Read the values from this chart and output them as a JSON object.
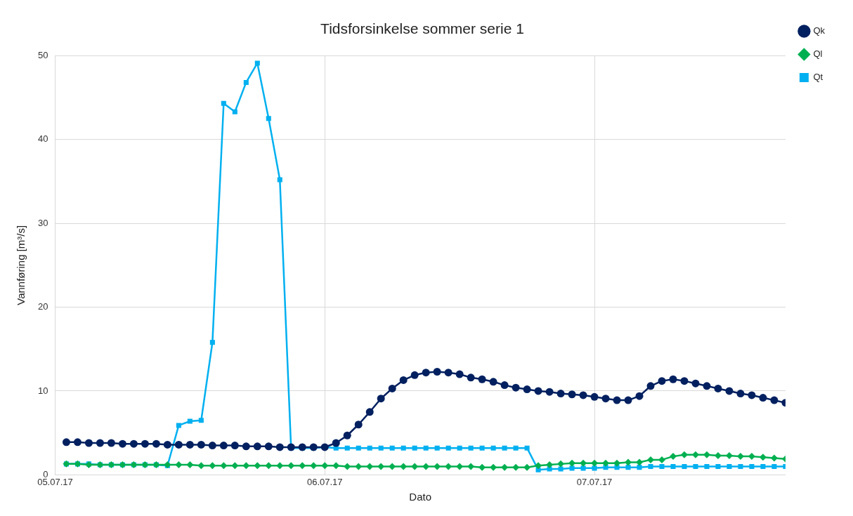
{
  "chart_data": {
    "type": "line",
    "title": "Tidsforsinkelse sommer serie 1",
    "xlabel": "Dato",
    "ylabel": "Vannføring [m³/s]",
    "x": [
      "--07-05T01:00",
      "--07-05T02:00",
      "--07-05T03:00",
      "--07-05T04:00",
      "--07-05T05:00",
      "--07-05T06:00",
      "--07-05T07:00",
      "--07-05T08:00",
      "--07-05T09:00",
      "--07-05T10:00",
      "--07-05T11:00",
      "--07-05T12:00",
      "--07-05T13:00",
      "--07-05T14:00",
      "--07-05T15:00",
      "--07-05T16:00",
      "--07-05T17:00",
      "--07-05T18:00",
      "--07-05T19:00",
      "--07-05T20:00",
      "--07-05T21:00",
      "--07-05T22:00",
      "--07-05T23:00",
      "--07-06T00:00",
      "--07-06T01:00",
      "--07-06T02:00",
      "--07-06T03:00",
      "--07-06T04:00",
      "--07-06T05:00",
      "--07-06T06:00",
      "--07-06T07:00",
      "--07-06T08:00",
      "--07-06T09:00",
      "--07-06T10:00",
      "--07-06T11:00",
      "--07-06T12:00",
      "--07-06T13:00",
      "--07-06T14:00",
      "--07-06T15:00",
      "--07-06T16:00",
      "--07-06T17:00",
      "--07-06T18:00",
      "--07-06T19:00",
      "--07-06T20:00",
      "--07-06T21:00",
      "--07-06T22:00",
      "--07-06T23:00",
      "--07-07T00:00",
      "--07-07T01:00",
      "--07-07T02:00",
      "--07-07T03:00",
      "--07-07T04:00",
      "--07-07T05:00",
      "--07-07T06:00",
      "--07-07T07:00",
      "--07-07T08:00",
      "--07-07T09:00",
      "--07-07T10:00",
      "--07-07T11:00",
      "--07-07T12:00",
      "--07-07T13:00",
      "--07-07T14:00",
      "--07-07T15:00",
      "--07-07T16:00",
      "--07-07T17:00"
    ],
    "series": [
      {
        "name": "Qk",
        "color": "#002060",
        "marker": "circle",
        "values": [
          3.9,
          3.9,
          3.8,
          3.8,
          3.8,
          3.7,
          3.7,
          3.7,
          3.7,
          3.6,
          3.6,
          3.6,
          3.6,
          3.5,
          3.5,
          3.5,
          3.4,
          3.4,
          3.4,
          3.3,
          3.3,
          3.3,
          3.3,
          3.3,
          3.8,
          4.7,
          6.0,
          7.5,
          9.1,
          10.3,
          11.3,
          11.9,
          12.2,
          12.3,
          12.2,
          12.0,
          11.6,
          11.4,
          11.1,
          10.7,
          10.4,
          10.2,
          10.0,
          9.9,
          9.7,
          9.6,
          9.5,
          9.3,
          9.1,
          8.9,
          8.9,
          9.4,
          10.6,
          11.2,
          11.4,
          11.2,
          10.9,
          10.6,
          10.3,
          10.0,
          9.7,
          9.5,
          9.2,
          8.9,
          8.6
        ]
      },
      {
        "name": "Ql",
        "color": "#00b050",
        "marker": "diamond",
        "values": [
          1.3,
          1.3,
          1.2,
          1.2,
          1.2,
          1.2,
          1.2,
          1.2,
          1.2,
          1.2,
          1.2,
          1.2,
          1.1,
          1.1,
          1.1,
          1.1,
          1.1,
          1.1,
          1.1,
          1.1,
          1.1,
          1.1,
          1.1,
          1.1,
          1.1,
          1.0,
          1.0,
          1.0,
          1.0,
          1.0,
          1.0,
          1.0,
          1.0,
          1.0,
          1.0,
          1.0,
          1.0,
          0.9,
          0.9,
          0.9,
          0.9,
          0.9,
          1.1,
          1.2,
          1.3,
          1.4,
          1.4,
          1.4,
          1.4,
          1.4,
          1.5,
          1.5,
          1.8,
          1.8,
          2.2,
          2.4,
          2.4,
          2.4,
          2.3,
          2.3,
          2.2,
          2.2,
          2.1,
          2.0,
          1.9
        ]
      },
      {
        "name": "Qt",
        "color": "#00b0f0",
        "marker": "square",
        "values": [
          1.3,
          1.3,
          1.3,
          1.2,
          1.2,
          1.2,
          1.2,
          1.2,
          1.2,
          1.1,
          5.9,
          6.4,
          6.5,
          15.8,
          44.3,
          43.3,
          46.8,
          49.1,
          42.5,
          35.2,
          3.2,
          3.2,
          3.2,
          3.3,
          3.2,
          3.2,
          3.2,
          3.2,
          3.2,
          3.2,
          3.2,
          3.2,
          3.2,
          3.2,
          3.2,
          3.2,
          3.2,
          3.2,
          3.2,
          3.2,
          3.2,
          3.2,
          0.6,
          0.7,
          0.7,
          0.8,
          0.8,
          0.8,
          0.9,
          0.9,
          0.9,
          0.9,
          1.0,
          1.0,
          1.0,
          1.0,
          1.0,
          1.0,
          1.0,
          1.0,
          1.0,
          1.0,
          1.0,
          1.0,
          1.0
        ]
      }
    ],
    "xlim": [
      "--07-05",
      "--07-07T17:00"
    ],
    "xticks": [
      {
        "value": "--07-05",
        "label": "05.07.17"
      },
      {
        "value": "--07-06",
        "label": "06.07.17"
      },
      {
        "value": "--07-07",
        "label": "07.07.17"
      }
    ],
    "ylim": [
      0,
      50
    ],
    "yticks": [
      0,
      10,
      20,
      30,
      40,
      50
    ],
    "grid": true,
    "legend": "top right",
    "line_style": "solid"
  }
}
